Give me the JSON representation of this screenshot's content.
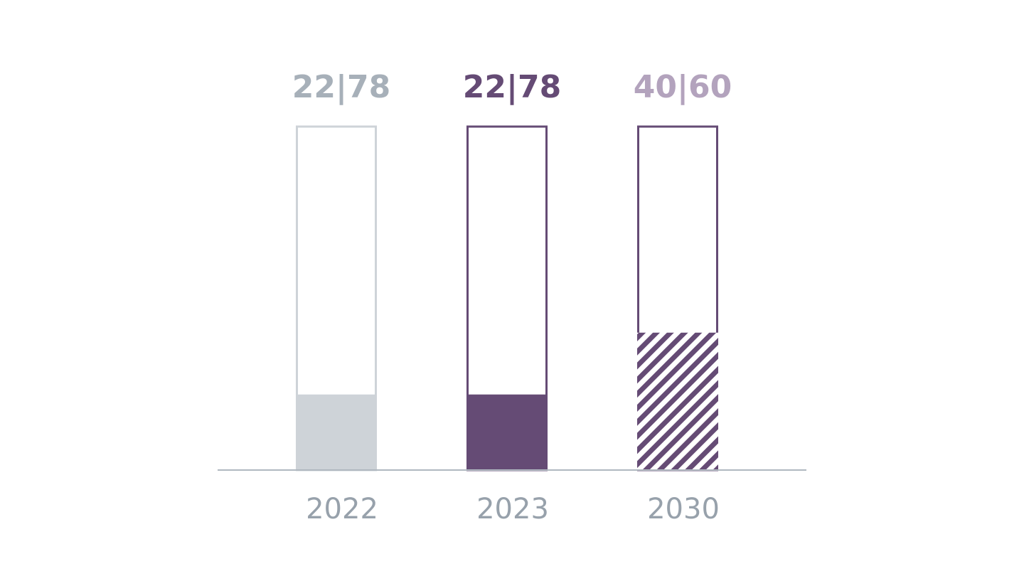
{
  "chart_data": {
    "type": "bar",
    "categories": [
      "2022",
      "2023",
      "2030"
    ],
    "values": [
      22,
      22,
      40
    ],
    "complement_values": [
      78,
      78,
      60
    ],
    "value_labels": [
      "22|78",
      "22|78",
      "40|60"
    ],
    "ylim": [
      0,
      100
    ],
    "styles": [
      "solid",
      "solid",
      "hatched"
    ],
    "colors": [
      "#ced3d8",
      "#654b75",
      "#654b75"
    ],
    "outline_colors": [
      "#ced3d8",
      "#654b75",
      "#654b75"
    ],
    "label_colors": [
      "#a7b0b9",
      "#654b75",
      "#b3a3bd"
    ],
    "axis_label_color": "#97a1ab",
    "baseline_color": "#b0b8c0"
  }
}
